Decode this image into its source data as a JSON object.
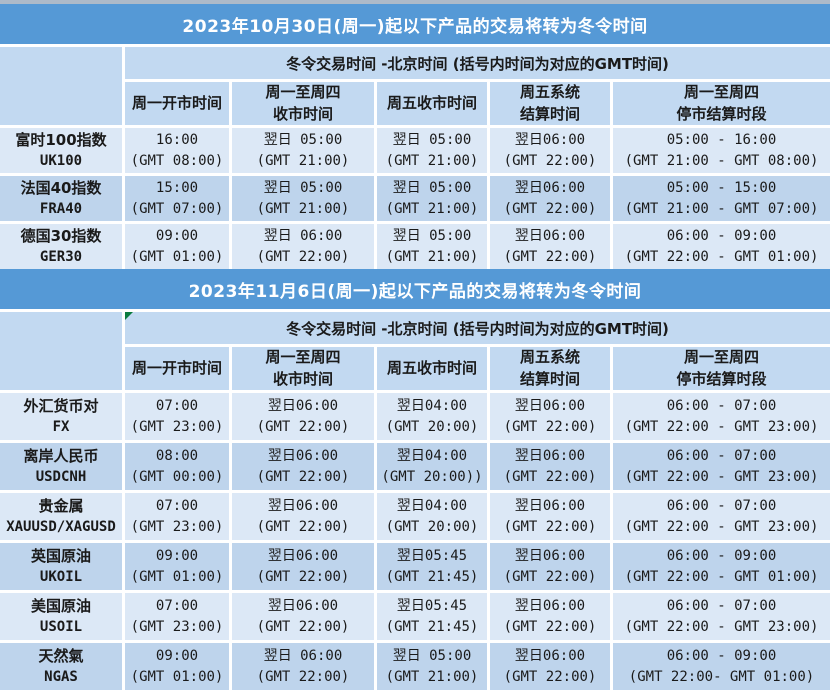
{
  "colors": {
    "banner_blue": "#5599d6",
    "header_bg": "#c2d9f1",
    "row_light": "#dce8f6",
    "row_dark": "#bed4ec",
    "top_strip": "#adbac9",
    "comment_marker_green": "#0a7b3e",
    "banner_text": "#ffffff",
    "cell_text": "#1a1a1a"
  },
  "merged_header": "冬令交易时间 -北京时间 (括号内时间为对应的GMT时间)",
  "columns": [
    [
      "周一开市时间",
      ""
    ],
    [
      "周一至周四",
      "收市时间"
    ],
    [
      "周五收市时间",
      ""
    ],
    [
      "周五系统",
      "结算时间"
    ],
    [
      "周一至周四",
      "停市结算时段"
    ]
  ],
  "sections": [
    {
      "banner": "2023年10月30日(周一)起以下产品的交易将转为冬令时间",
      "rows": [
        {
          "product": [
            "富时100指数",
            "UK100"
          ],
          "cells": [
            [
              "16:00",
              "(GMT 08:00)"
            ],
            [
              "翌日 05:00",
              "(GMT 21:00)"
            ],
            [
              "翌日 05:00",
              "(GMT 21:00)"
            ],
            [
              "翌日06:00",
              "(GMT 22:00)"
            ],
            [
              "05:00 - 16:00",
              "(GMT 21:00 - GMT 08:00)"
            ]
          ]
        },
        {
          "product": [
            "法国40指数",
            "FRA40"
          ],
          "cells": [
            [
              "15:00",
              "(GMT 07:00)"
            ],
            [
              "翌日 05:00",
              "(GMT 21:00)"
            ],
            [
              "翌日 05:00",
              "(GMT 21:00)"
            ],
            [
              "翌日06:00",
              "(GMT 22:00)"
            ],
            [
              "05:00 - 15:00",
              "(GMT 21:00 - GMT 07:00)"
            ]
          ]
        },
        {
          "product": [
            "德国30指数",
            "GER30"
          ],
          "cells": [
            [
              "09:00",
              "(GMT 01:00)"
            ],
            [
              "翌日 06:00",
              "(GMT 22:00)"
            ],
            [
              "翌日 05:00",
              "(GMT 21:00)"
            ],
            [
              "翌日06:00",
              "(GMT 22:00)"
            ],
            [
              "06:00 - 09:00",
              "(GMT 22:00 - GMT 01:00)"
            ]
          ]
        }
      ]
    },
    {
      "banner": "2023年11月6日(周一)起以下产品的交易将转为冬令时间",
      "rows": [
        {
          "product": [
            "外汇货币对",
            "FX"
          ],
          "cells": [
            [
              "07:00",
              "(GMT 23:00)"
            ],
            [
              "翌日06:00",
              "(GMT 22:00)"
            ],
            [
              "翌日04:00",
              "(GMT 20:00)"
            ],
            [
              "翌日06:00",
              "(GMT 22:00)"
            ],
            [
              "06:00 - 07:00",
              "(GMT 22:00 - GMT 23:00)"
            ]
          ]
        },
        {
          "product": [
            "离岸人民币",
            "USDCNH"
          ],
          "cells": [
            [
              "08:00",
              "(GMT 00:00)"
            ],
            [
              "翌日06:00",
              "(GMT 22:00)"
            ],
            [
              "翌日04:00",
              "(GMT 20:00))"
            ],
            [
              "翌日06:00",
              "(GMT 22:00)"
            ],
            [
              "06:00 - 07:00",
              "(GMT 22:00 - GMT 23:00)"
            ]
          ]
        },
        {
          "product": [
            "贵金属",
            "XAUUSD/XAGUSD"
          ],
          "cells": [
            [
              "07:00",
              "(GMT 23:00)"
            ],
            [
              "翌日06:00",
              "(GMT 22:00)"
            ],
            [
              "翌日04:00",
              "(GMT 20:00)"
            ],
            [
              "翌日06:00",
              "(GMT 22:00)"
            ],
            [
              "06:00 - 07:00",
              "(GMT 22:00 - GMT 23:00)"
            ]
          ]
        },
        {
          "product": [
            "英国原油",
            "UKOIL"
          ],
          "cells": [
            [
              "09:00",
              "(GMT 01:00)"
            ],
            [
              "翌日06:00",
              "(GMT 22:00)"
            ],
            [
              "翌日05:45",
              "(GMT 21:45)"
            ],
            [
              "翌日06:00",
              "(GMT 22:00)"
            ],
            [
              "06:00 - 09:00",
              "(GMT 22:00 - GMT 01:00)"
            ]
          ]
        },
        {
          "product": [
            "美国原油",
            "USOIL"
          ],
          "cells": [
            [
              "07:00",
              "(GMT 23:00)"
            ],
            [
              "翌日06:00",
              "(GMT 22:00)"
            ],
            [
              "翌日05:45",
              "(GMT 21:45)"
            ],
            [
              "翌日06:00",
              "(GMT 22:00)"
            ],
            [
              "06:00 - 07:00",
              "(GMT 22:00 - GMT 23:00)"
            ]
          ]
        },
        {
          "product": [
            "天然氣",
            "NGAS"
          ],
          "cells": [
            [
              "09:00",
              "(GMT 01:00)"
            ],
            [
              "翌日 06:00",
              "(GMT 22:00)"
            ],
            [
              "翌日 05:00",
              "(GMT 21:00)"
            ],
            [
              "翌日06:00",
              "(GMT 22:00)"
            ],
            [
              "06:00 - 09:00",
              "(GMT 22:00- GMT 01:00)"
            ]
          ]
        }
      ]
    }
  ]
}
